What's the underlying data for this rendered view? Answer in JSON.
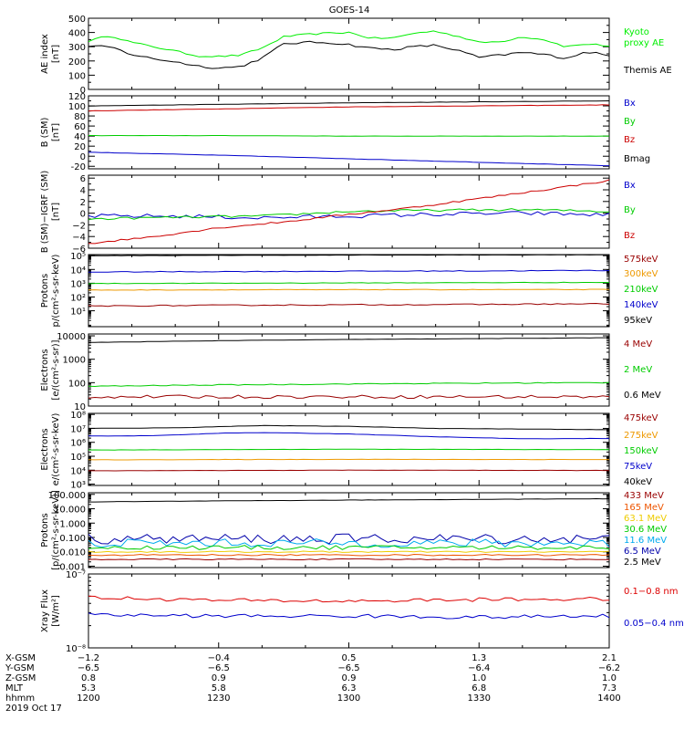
{
  "title": "GOES-14",
  "chart_data": [
    {
      "type": "line",
      "ylabel": [
        "AE index",
        "[nT]"
      ],
      "scale": "linear",
      "ylim": [
        0,
        500
      ],
      "ticks": [
        0,
        100,
        200,
        300,
        400,
        500
      ],
      "tick_labels": [
        "0",
        "100",
        "200",
        "300",
        "400",
        "500"
      ],
      "minor": [
        50,
        150,
        250,
        350,
        450
      ],
      "legend": [
        {
          "text": "Kyoto",
          "color": "#00ee00"
        },
        {
          "text": "proxy AE",
          "color": "#00ee00"
        },
        {
          "text": "Themis AE",
          "color": "#000000"
        }
      ],
      "series": [
        {
          "name": "Kyoto proxy AE",
          "color": "#00ee00",
          "x": [
            1200,
            1205,
            1210,
            1215,
            1220,
            1225,
            1230,
            1235,
            1240,
            1245,
            1250,
            1255,
            1300,
            1305,
            1310,
            1315,
            1320,
            1325,
            1330,
            1335,
            1340,
            1345,
            1350,
            1355,
            1400
          ],
          "y": [
            340,
            380,
            330,
            300,
            270,
            235,
            232,
            240,
            290,
            370,
            385,
            395,
            400,
            360,
            360,
            395,
            410,
            375,
            330,
            335,
            370,
            350,
            300,
            320,
            305
          ],
          "jitter": 6
        },
        {
          "name": "Themis AE",
          "color": "#000000",
          "x": [
            1200,
            1205,
            1210,
            1215,
            1220,
            1225,
            1230,
            1235,
            1240,
            1245,
            1250,
            1255,
            1300,
            1305,
            1310,
            1315,
            1320,
            1325,
            1330,
            1335,
            1340,
            1345,
            1350,
            1355,
            1400
          ],
          "y": [
            300,
            300,
            245,
            215,
            195,
            165,
            150,
            160,
            220,
            320,
            330,
            330,
            315,
            290,
            280,
            300,
            310,
            275,
            225,
            240,
            260,
            245,
            220,
            265,
            235
          ],
          "jitter": 8
        }
      ]
    },
    {
      "type": "line",
      "ylabel": [
        "B (SM)",
        "[nT]"
      ],
      "scale": "linear",
      "ylim": [
        -25,
        120
      ],
      "ticks": [
        -20,
        0,
        20,
        40,
        60,
        80,
        100,
        120
      ],
      "tick_labels": [
        "-20",
        "0",
        "20",
        "40",
        "60",
        "80",
        "100",
        "120"
      ],
      "minor": [
        -10,
        10,
        30,
        50,
        70,
        90,
        110
      ],
      "legend": [
        {
          "text": "Bx",
          "color": "#0000cc"
        },
        {
          "text": "By",
          "color": "#00cc00"
        },
        {
          "text": "Bz",
          "color": "#cc0000"
        },
        {
          "text": "Bmag",
          "color": "#000000"
        }
      ],
      "series": [
        {
          "name": "Bmag",
          "color": "#000000",
          "x": [
            1200,
            1230,
            1300,
            1330,
            1400
          ],
          "y": [
            100,
            103,
            106,
            108,
            110
          ],
          "jitter": 0.3
        },
        {
          "name": "Bz",
          "color": "#cc0000",
          "x": [
            1200,
            1230,
            1300,
            1330,
            1400
          ],
          "y": [
            90,
            94,
            98,
            100,
            102
          ],
          "jitter": 0.3
        },
        {
          "name": "By",
          "color": "#00cc00",
          "x": [
            1200,
            1230,
            1300,
            1330,
            1400
          ],
          "y": [
            41,
            41,
            40,
            40,
            40
          ],
          "jitter": 0.2
        },
        {
          "name": "Bx",
          "color": "#0000cc",
          "x": [
            1200,
            1230,
            1300,
            1330,
            1400
          ],
          "y": [
            8,
            2,
            -5,
            -12,
            -19
          ],
          "jitter": 0.3
        }
      ]
    },
    {
      "type": "line",
      "ylabel": [
        "B (SM)−IGRF (SM)",
        "[nT]"
      ],
      "scale": "linear",
      "ylim": [
        -6,
        6.5
      ],
      "ticks": [
        -6,
        -4,
        -2,
        0,
        2,
        4,
        6
      ],
      "tick_labels": [
        "−6",
        "−4",
        "−2",
        "0",
        "2",
        "4",
        "6"
      ],
      "minor": [
        -5,
        -3,
        -1,
        1,
        3,
        5
      ],
      "legend": [
        {
          "text": "Bx",
          "color": "#0000cc"
        },
        {
          "text": "By",
          "color": "#00cc00"
        },
        {
          "text": "Bz",
          "color": "#cc0000"
        }
      ],
      "series": [
        {
          "name": "Bx",
          "color": "#0000cc",
          "x": [
            1200,
            1220,
            1240,
            1300,
            1320,
            1340,
            1400
          ],
          "y": [
            -0.5,
            -0.5,
            -0.8,
            -0.5,
            -0.2,
            0,
            -0.3
          ],
          "jitter": 0.35
        },
        {
          "name": "By",
          "color": "#00cc00",
          "x": [
            1200,
            1220,
            1240,
            1300,
            1320,
            1340,
            1400
          ],
          "y": [
            -1,
            -0.7,
            -0.5,
            0.3,
            0.5,
            0.6,
            0.3
          ],
          "jitter": 0.2
        },
        {
          "name": "Bz",
          "color": "#cc0000",
          "x": [
            1200,
            1215,
            1230,
            1245,
            1300,
            1315,
            1330,
            1345,
            1400
          ],
          "y": [
            -5.2,
            -4,
            -2.5,
            -1.5,
            -0.2,
            1,
            2.5,
            4,
            5.6
          ],
          "jitter": 0.15
        }
      ]
    },
    {
      "type": "line",
      "ylabel": [
        "Protons",
        "p/(cm²-s-sr-keV)"
      ],
      "scale": "log",
      "ylim": [
        0.7,
        120000
      ],
      "ticks": [
        10,
        100,
        1000,
        10000,
        100000
      ],
      "tick_labels": [
        "10¹",
        "10²",
        "10³",
        "10⁴",
        "10⁵"
      ],
      "legend": [
        {
          "text": "575keV",
          "color": "#990000"
        },
        {
          "text": "300keV",
          "color": "#ee9900"
        },
        {
          "text": "210keV",
          "color": "#00cc00"
        },
        {
          "text": "140keV",
          "color": "#0000cc"
        },
        {
          "text": "95keV",
          "color": "#000000"
        }
      ],
      "series": [
        {
          "name": "95keV",
          "color": "#000000",
          "x": [
            1200,
            1230,
            1300,
            1330,
            1400
          ],
          "y": [
            100000,
            105000,
            110000,
            112000,
            115000
          ],
          "jitter": 0.01
        },
        {
          "name": "140keV",
          "color": "#0000cc",
          "x": [
            1200,
            1230,
            1300,
            1330,
            1400
          ],
          "y": [
            6500,
            7000,
            7500,
            7800,
            8500
          ],
          "jitter": 0.03
        },
        {
          "name": "210keV",
          "color": "#00cc00",
          "x": [
            1200,
            1230,
            1300,
            1330,
            1400
          ],
          "y": [
            950,
            1000,
            1050,
            1100,
            1150
          ],
          "jitter": 0.02
        },
        {
          "name": "300keV",
          "color": "#ee9900",
          "x": [
            1200,
            1230,
            1300,
            1330,
            1400
          ],
          "y": [
            320,
            330,
            340,
            345,
            350
          ],
          "jitter": 0.02
        },
        {
          "name": "575keV",
          "color": "#990000",
          "x": [
            1200,
            1230,
            1300,
            1330,
            1400
          ],
          "y": [
            22,
            25,
            27,
            29,
            32
          ],
          "jitter": 0.04
        }
      ]
    },
    {
      "type": "line",
      "ylabel": [
        "Electrons",
        "[e/(cm²-s-sr)]"
      ],
      "scale": "log",
      "ylim": [
        10,
        12000
      ],
      "ticks": [
        10,
        100,
        1000,
        10000
      ],
      "tick_labels": [
        "10",
        "100",
        "1000",
        "10000"
      ],
      "legend": [
        {
          "text": "4 MeV",
          "color": "#990000"
        },
        {
          "text": "2 MeV",
          "color": "#00cc00"
        },
        {
          "text": "0.6 MeV",
          "color": "#000000"
        }
      ],
      "series": [
        {
          "name": "0.6 MeV",
          "color": "#000000",
          "x": [
            1200,
            1230,
            1300,
            1330,
            1400
          ],
          "y": [
            5200,
            6200,
            7000,
            7600,
            8300
          ],
          "jitter": 0.005
        },
        {
          "name": "2 MeV",
          "color": "#00cc00",
          "x": [
            1200,
            1230,
            1300,
            1330,
            1400
          ],
          "y": [
            70,
            80,
            88,
            95,
            100
          ],
          "jitter": 0.02
        },
        {
          "name": "4 MeV",
          "color": "#990000",
          "x": [
            1200,
            1230,
            1300,
            1330,
            1400
          ],
          "y": [
            25,
            25,
            25,
            25,
            25
          ],
          "jitter": 0.07
        }
      ]
    },
    {
      "type": "line",
      "ylabel": [
        "Electrons",
        "e/(cm²-s-sr-keV)"
      ],
      "scale": "log",
      "ylim": [
        800,
        120000000
      ],
      "ticks": [
        1000,
        10000,
        100000,
        1000000,
        10000000,
        100000000
      ],
      "tick_labels": [
        "10³",
        "10⁴",
        "10⁵",
        "10⁶",
        "10⁷",
        "10⁸"
      ],
      "legend": [
        {
          "text": "475keV",
          "color": "#990000"
        },
        {
          "text": "275keV",
          "color": "#ee9900"
        },
        {
          "text": "150keV",
          "color": "#00cc00"
        },
        {
          "text": "75keV",
          "color": "#0000cc"
        },
        {
          "text": "40keV",
          "color": "#000000"
        }
      ],
      "series": [
        {
          "name": "40keV",
          "color": "#000000",
          "x": [
            1200,
            1220,
            1240,
            1300,
            1320,
            1340,
            1400
          ],
          "y": [
            10000000,
            11000000,
            16000000,
            14000000,
            10000000,
            9000000,
            8000000
          ],
          "jitter": 0.01
        },
        {
          "name": "75keV",
          "color": "#0000cc",
          "x": [
            1200,
            1215,
            1230,
            1240,
            1300,
            1320,
            1340,
            1400
          ],
          "y": [
            2800000,
            3000000,
            4500000,
            5000000,
            4000000,
            2500000,
            1800000,
            1900000
          ],
          "jitter": 0.01
        },
        {
          "name": "150keV",
          "color": "#00cc00",
          "x": [
            1200,
            1230,
            1300,
            1330,
            1400
          ],
          "y": [
            280000,
            300000,
            320000,
            310000,
            300000
          ],
          "jitter": 0.01
        },
        {
          "name": "275keV",
          "color": "#ee9900",
          "x": [
            1200,
            1230,
            1300,
            1330,
            1400
          ],
          "y": [
            55000,
            58000,
            60000,
            59000,
            58000
          ],
          "jitter": 0.01
        },
        {
          "name": "475keV",
          "color": "#990000",
          "x": [
            1200,
            1230,
            1300,
            1330,
            1400
          ],
          "y": [
            9000,
            9500,
            10000,
            9800,
            9500
          ],
          "jitter": 0.01
        }
      ]
    },
    {
      "type": "line",
      "ylabel": [
        "Protons",
        "[p/(cm²-s-sr-keV)]"
      ],
      "scale": "log",
      "ylim": [
        0.0008,
        130
      ],
      "ticks": [
        0.001,
        0.01,
        0.1,
        1,
        10,
        100
      ],
      "tick_labels": [
        "0.001",
        "0.010",
        "0.100",
        "1.000",
        "10.000",
        "100.000"
      ],
      "legend": [
        {
          "text": "433 MeV",
          "color": "#990000"
        },
        {
          "text": "165 MeV",
          "color": "#ee5500"
        },
        {
          "text": "63.1 MeV",
          "color": "#eecc00"
        },
        {
          "text": "30.6 MeV",
          "color": "#00cc00"
        },
        {
          "text": "11.6 MeV",
          "color": "#00aaee"
        },
        {
          "text": "6.5 MeV",
          "color": "#0000aa"
        },
        {
          "text": "2.5 MeV",
          "color": "#000000"
        }
      ],
      "series": [
        {
          "name": "2.5 MeV",
          "color": "#000000",
          "x": [
            1200,
            1230,
            1300,
            1330,
            1400
          ],
          "y": [
            30,
            35,
            40,
            45,
            50
          ],
          "jitter": 0.01
        },
        {
          "name": "6.5 MeV",
          "color": "#0000aa",
          "x": [
            1200,
            1230,
            1300,
            1330,
            1400
          ],
          "y": [
            0.08,
            0.08,
            0.08,
            0.08,
            0.08
          ],
          "jitter": 0.35
        },
        {
          "name": "11.6 MeV",
          "color": "#00aaee",
          "x": [
            1200,
            1230,
            1300,
            1330,
            1400
          ],
          "y": [
            0.04,
            0.04,
            0.04,
            0.04,
            0.04
          ],
          "jitter": 0.3
        },
        {
          "name": "30.6 MeV",
          "color": "#00cc00",
          "x": [
            1200,
            1230,
            1300,
            1330,
            1400
          ],
          "y": [
            0.02,
            0.02,
            0.02,
            0.02,
            0.02
          ],
          "jitter": 0.15
        },
        {
          "name": "63.1 MeV",
          "color": "#eecc00",
          "x": [
            1200,
            1230,
            1300,
            1330,
            1400
          ],
          "y": [
            0.01,
            0.01,
            0.01,
            0.01,
            0.01
          ],
          "jitter": 0.05
        },
        {
          "name": "165 MeV",
          "color": "#ee5500",
          "x": [
            1200,
            1230,
            1300,
            1330,
            1400
          ],
          "y": [
            0.006,
            0.006,
            0.006,
            0.006,
            0.006
          ],
          "jitter": 0.05
        },
        {
          "name": "433 MeV",
          "color": "#990000",
          "x": [
            1200,
            1230,
            1300,
            1330,
            1400
          ],
          "y": [
            0.003,
            0.003,
            0.003,
            0.003,
            0.003
          ],
          "jitter": 0.04
        }
      ]
    },
    {
      "type": "line",
      "ylabel": [
        "Xray Flux",
        "[W/m²]"
      ],
      "scale": "log",
      "ylim": [
        1e-08,
        1e-07
      ],
      "ticks": [
        1e-08,
        1e-07
      ],
      "tick_labels": [
        "10⁻⁸",
        "10⁻⁷"
      ],
      "legend": [
        {
          "text": "0.1−0.8 nm",
          "color": "#dd0000"
        },
        {
          "text": "0.05−0.4 nm",
          "color": "#0000cc"
        }
      ],
      "series": [
        {
          "name": "0.1-0.8 nm",
          "color": "#dd0000",
          "x": [
            1200,
            1230,
            1300,
            1330,
            1400
          ],
          "y": [
            4.8e-08,
            4.4e-08,
            4.3e-08,
            4.5e-08,
            4.6e-08
          ],
          "jitter": 0.025
        },
        {
          "name": "0.05-0.4 nm",
          "color": "#0000cc",
          "x": [
            1200,
            1230,
            1300,
            1330,
            1400
          ],
          "y": [
            2.8e-08,
            2.7e-08,
            2.7e-08,
            2.6e-08,
            2.7e-08
          ],
          "jitter": 0.025
        }
      ]
    }
  ],
  "xaxis": {
    "range": [
      1200,
      1400
    ],
    "tick_positions": [
      1200,
      1230,
      1300,
      1330,
      1400
    ],
    "rows": [
      {
        "label": "X-GSM",
        "values": [
          "−1.2",
          "−0.4",
          "0.5",
          "1.3",
          "2.1"
        ]
      },
      {
        "label": "Y-GSM",
        "values": [
          "−6.5",
          "−6.5",
          "−6.5",
          "−6.4",
          "−6.2"
        ]
      },
      {
        "label": "Z-GSM",
        "values": [
          "0.8",
          "0.9",
          "0.9",
          "1.0",
          "1.0"
        ]
      },
      {
        "label": "MLT",
        "values": [
          "5.3",
          "5.8",
          "6.3",
          "6.8",
          "7.3"
        ]
      },
      {
        "label": "hhmm",
        "values": [
          "1200",
          "1230",
          "1300",
          "1330",
          "1400"
        ]
      }
    ],
    "date": "2019 Oct 17"
  }
}
